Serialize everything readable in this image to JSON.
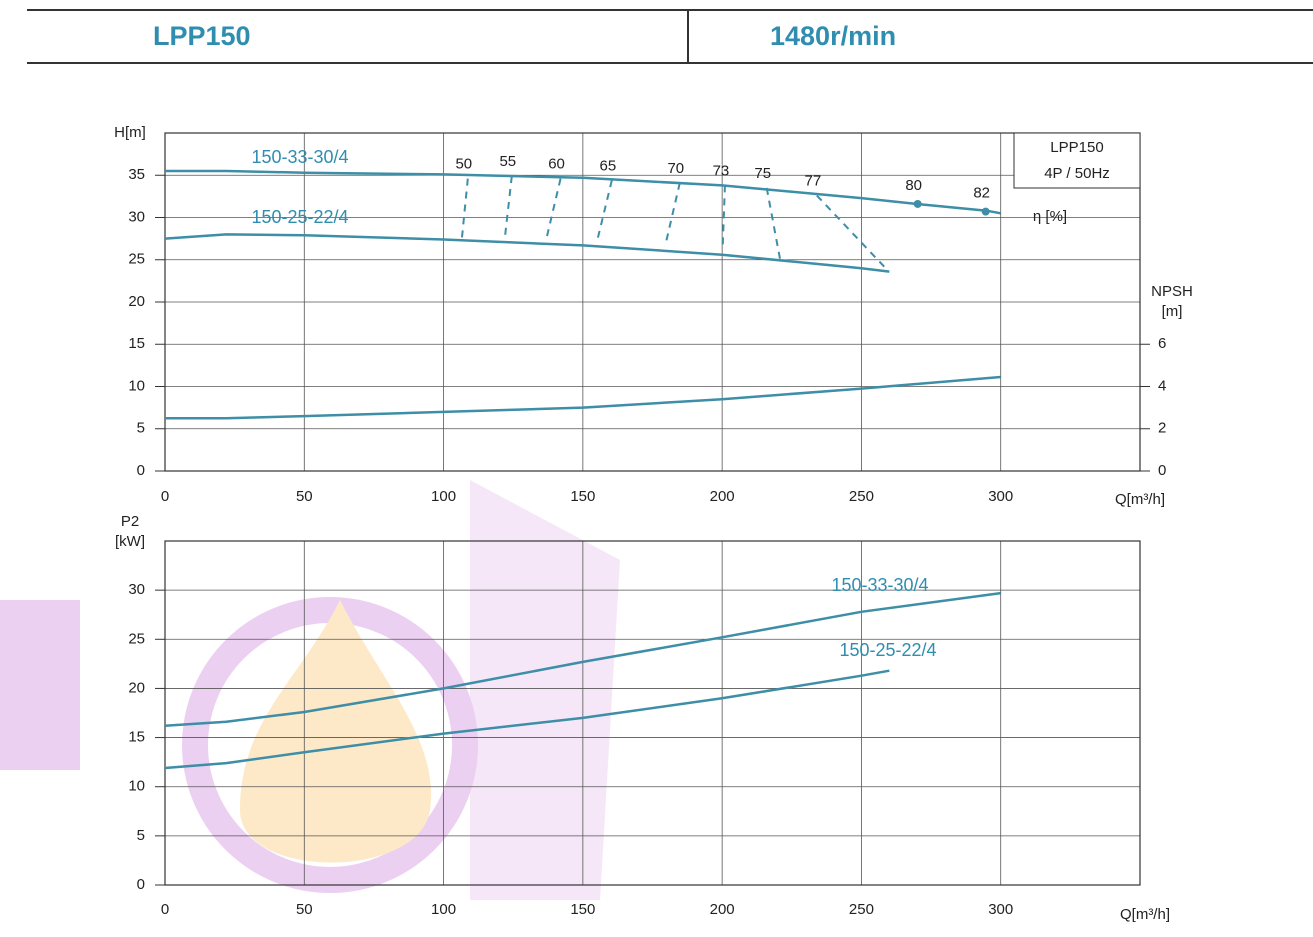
{
  "header": {
    "model": "LPP150",
    "speed": "1480r/min"
  },
  "chart_data": [
    {
      "type": "line",
      "ylabel": "H[m]",
      "xlabel": "Q[m³/h]",
      "y2label": [
        "NPSH",
        "[m]"
      ],
      "legend_box": [
        "LPP150",
        "4P / 50Hz"
      ],
      "xlim": [
        0,
        350
      ],
      "xticks": [
        0,
        50,
        100,
        150,
        200,
        250,
        300
      ],
      "ylim": [
        0,
        40
      ],
      "yticks": [
        0,
        5,
        10,
        15,
        20,
        25,
        30,
        35
      ],
      "y2lim": [
        0,
        16
      ],
      "y2ticks": [
        0,
        2,
        4,
        6
      ],
      "grid": true,
      "series": [
        {
          "name": "150-33-30/4",
          "color": "#3d8ea6",
          "x": [
            0,
            22,
            50,
            100,
            150,
            200,
            250,
            270,
            295,
            300
          ],
          "values": [
            35.5,
            35.5,
            35.3,
            35.1,
            34.7,
            33.8,
            32.3,
            31.6,
            30.8,
            30.5
          ]
        },
        {
          "name": "150-25-22/4",
          "color": "#3d8ea6",
          "x": [
            0,
            22,
            50,
            100,
            150,
            200,
            250,
            260
          ],
          "values": [
            27.5,
            28,
            27.9,
            27.4,
            26.7,
            25.6,
            24,
            23.6
          ]
        },
        {
          "axis": "y2",
          "color": "#3d8ea6",
          "x": [
            0,
            22,
            50,
            100,
            150,
            200,
            250,
            300
          ],
          "values": [
            2.5,
            2.5,
            2.6,
            2.8,
            3.0,
            3.4,
            3.9,
            4.45
          ]
        }
      ],
      "efficiency": {
        "label": "η [%]",
        "color": "#3d8ea6",
        "lines": [
          {
            "value": 50,
            "x": [
              108.7,
              106.6
            ],
            "y": [
              34.6,
              27.6
            ]
          },
          {
            "value": 55,
            "x": [
              124.5,
              122
            ],
            "y": [
              34.9,
              27.6
            ]
          },
          {
            "value": 60,
            "x": [
              142,
              137
            ],
            "y": [
              34.6,
              27.6
            ]
          },
          {
            "value": 65,
            "x": [
              160.4,
              155.4
            ],
            "y": [
              34.4,
              27.6
            ]
          },
          {
            "value": 70,
            "x": [
              184.8,
              179.8
            ],
            "y": [
              34.1,
              27.0
            ]
          },
          {
            "value": 73,
            "x": [
              201,
              200.2
            ],
            "y": [
              33.8,
              26.5
            ]
          },
          {
            "value": 75,
            "x": [
              216,
              221
            ],
            "y": [
              33.5,
              24.7
            ]
          },
          {
            "value": 77,
            "x": [
              234,
              258.7
            ],
            "y": [
              32.6,
              24.0
            ]
          }
        ],
        "points": [
          {
            "value": 80,
            "x": 270.2,
            "y": 31.6
          },
          {
            "value": 82,
            "x": 294.6,
            "y": 30.7
          }
        ]
      }
    },
    {
      "type": "line",
      "ylabel": [
        "P2",
        "[kW]"
      ],
      "xlabel": "Q[m³/h]",
      "xlim": [
        0,
        350
      ],
      "xticks": [
        0,
        50,
        100,
        150,
        200,
        250,
        300
      ],
      "ylim": [
        0,
        35
      ],
      "yticks": [
        0,
        5,
        10,
        15,
        20,
        25,
        30
      ],
      "grid": true,
      "series": [
        {
          "name": "150-33-30/4",
          "color": "#3d8ea6",
          "x": [
            0,
            22,
            50,
            100,
            150,
            200,
            250,
            300
          ],
          "values": [
            16.2,
            16.6,
            17.6,
            20,
            22.7,
            25.2,
            27.8,
            29.7
          ]
        },
        {
          "name": "150-25-22/4",
          "color": "#3d8ea6",
          "x": [
            0,
            22,
            50,
            100,
            150,
            200,
            250,
            260
          ],
          "values": [
            11.9,
            12.4,
            13.5,
            15.4,
            17,
            19,
            21.3,
            21.8
          ]
        }
      ]
    }
  ]
}
